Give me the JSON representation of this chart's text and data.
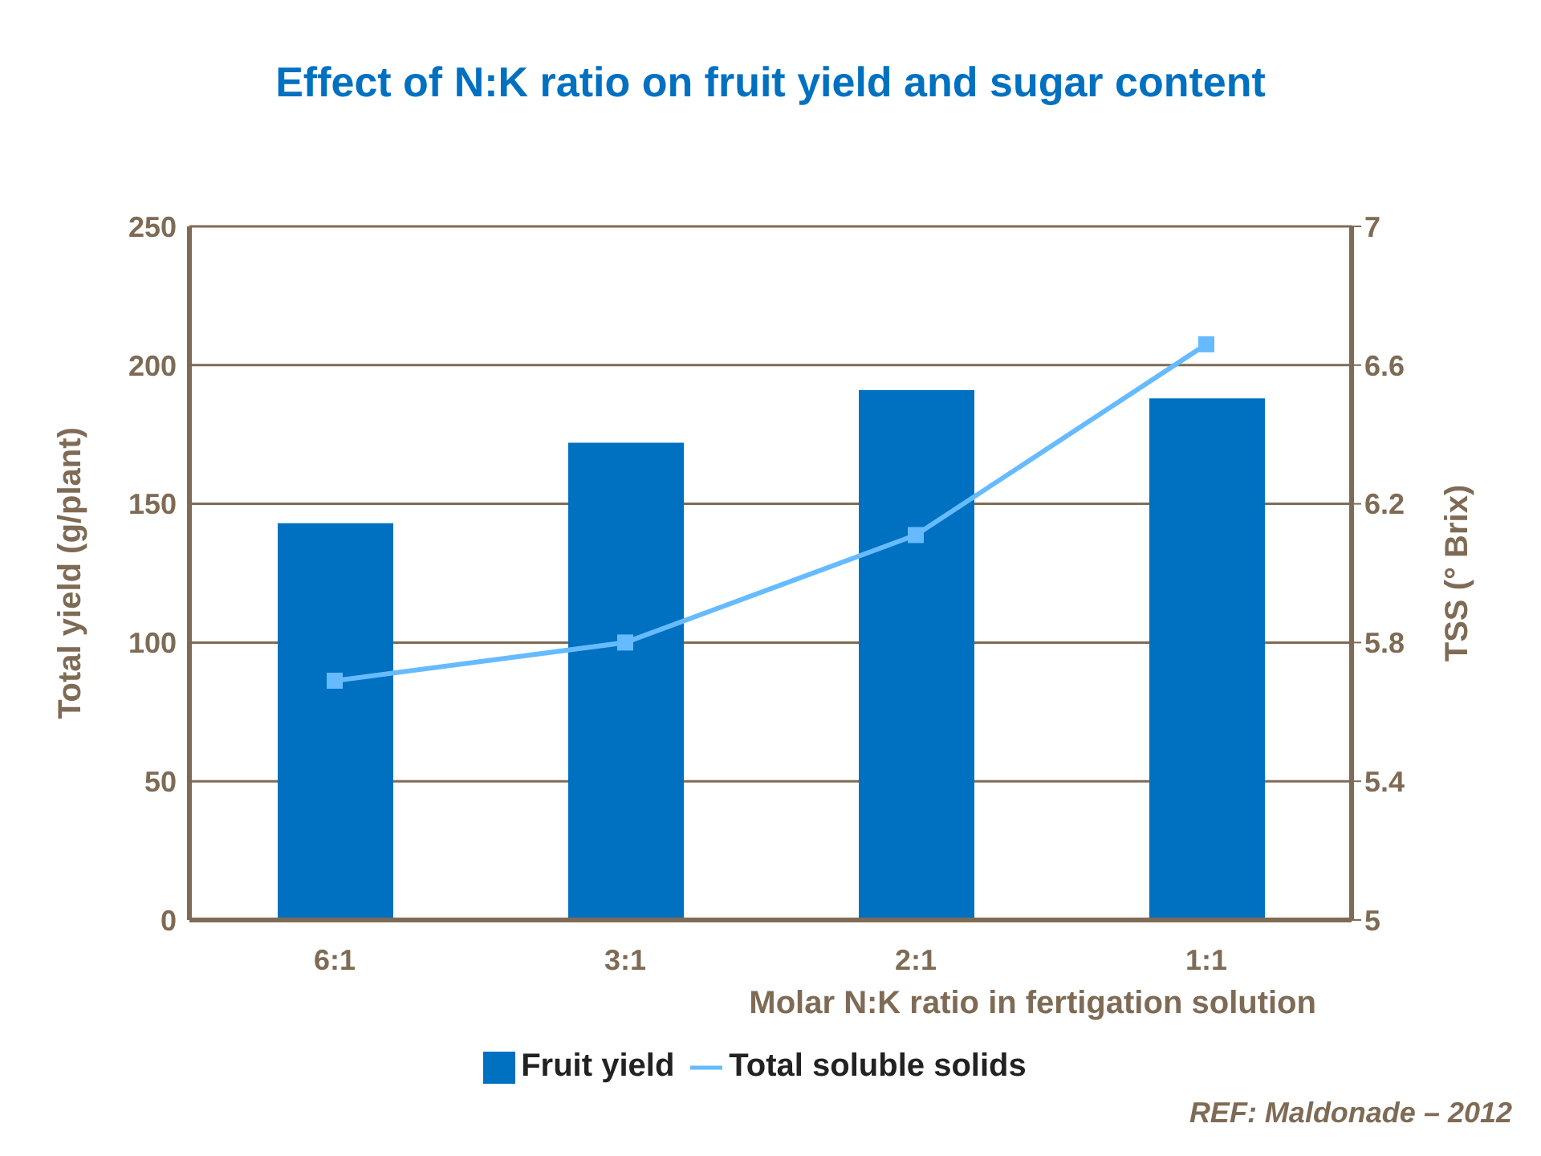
{
  "chart_data": {
    "type": "bar",
    "title": "Effect of N:K ratio on fruit yield and sugar content",
    "xlabel": "Molar N:K ratio in fertigation solution",
    "ylabel": "Total yield (g/plant)",
    "y2label": "TSS  (° Brix)",
    "annotations": [
      "REF: Maldonade – 2012"
    ],
    "categories": [
      "6:1",
      "3:1",
      "2:1",
      "1:1"
    ],
    "series": [
      {
        "name": "Fruit yield",
        "color": "#0070c0",
        "values": [
          143,
          172,
          191,
          188
        ]
      },
      {
        "name": "Total soluble solids",
        "type": "line",
        "axis": "y2",
        "color": "#66bbff",
        "values": [
          5.69,
          5.8,
          6.11,
          6.66
        ]
      }
    ],
    "ylim": [
      0,
      250
    ],
    "yticks": [
      0,
      50,
      100,
      150,
      200,
      250
    ],
    "y2lim": [
      5,
      7
    ],
    "y2ticks": [
      5,
      5.4,
      5.8,
      6.2,
      6.6,
      7
    ],
    "grid": "y",
    "legend": "bottom",
    "marker": "square"
  }
}
